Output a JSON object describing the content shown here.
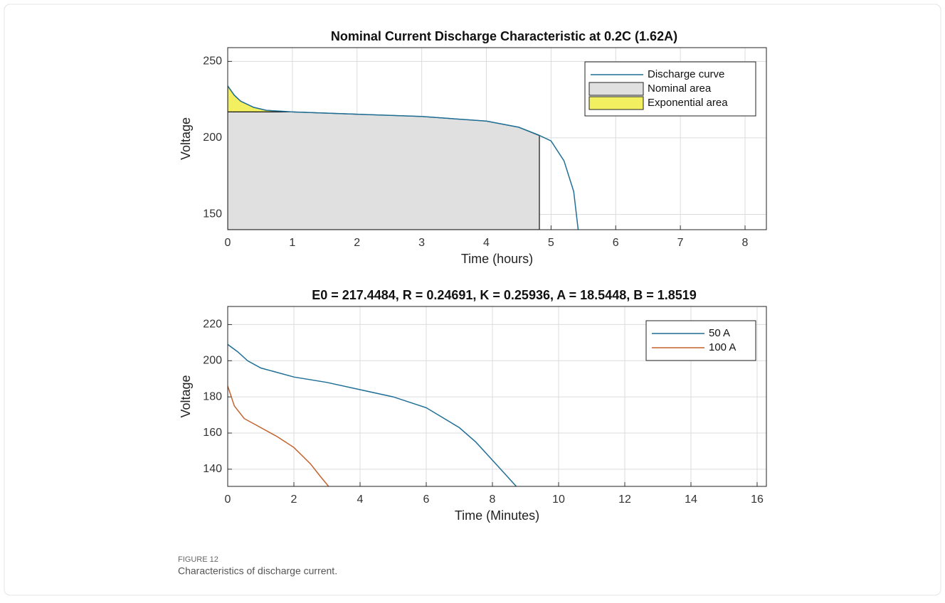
{
  "chart_data": [
    {
      "type": "line",
      "title": "Nominal Current Discharge Characteristic at 0.2C (1.62A)",
      "xlabel": "Time (hours)",
      "ylabel": "Voltage",
      "xlim": [
        0,
        8.33
      ],
      "ylim": [
        140,
        259
      ],
      "xticks": [
        0,
        1,
        2,
        3,
        4,
        5,
        6,
        7,
        8
      ],
      "yticks": [
        150,
        200,
        250
      ],
      "grid": true,
      "legend": "upper right",
      "series": [
        {
          "name": "Discharge curve",
          "kind": "line",
          "color": "#1f6f96",
          "x": [
            0,
            0.1,
            0.2,
            0.4,
            0.6,
            0.8,
            1,
            2,
            3,
            4,
            4.5,
            4.8,
            5,
            5.2,
            5.35,
            5.42
          ],
          "values": [
            234,
            228,
            224,
            220,
            218,
            217.5,
            217,
            215.5,
            214,
            211,
            207,
            202,
            198,
            185,
            165,
            140
          ]
        },
        {
          "name": "Nominal area",
          "kind": "area",
          "color": "#e0e0e0",
          "x": [
            0,
            0.9,
            1,
            2,
            3,
            4,
            4.5,
            4.82
          ],
          "values": [
            217,
            217,
            217,
            215.5,
            214,
            211,
            207,
            201.5
          ]
        },
        {
          "name": "Exponential area",
          "kind": "area",
          "color": "#f2f060",
          "x": [
            0,
            0.1,
            0.2,
            0.4,
            0.6,
            0.8,
            0.9
          ],
          "values": [
            234,
            228,
            224,
            220,
            218,
            217.5,
            217.2
          ]
        }
      ]
    },
    {
      "type": "line",
      "title": "E0 = 217.4484, R = 0.24691, K = 0.25936, A = 18.5448, B = 1.8519",
      "xlabel": "Time (Minutes)",
      "ylabel": "Voltage",
      "xlim": [
        0,
        16.28
      ],
      "ylim": [
        130.5,
        230
      ],
      "xticks": [
        0,
        2,
        4,
        6,
        8,
        10,
        12,
        14,
        16
      ],
      "yticks": [
        140,
        160,
        180,
        200,
        220
      ],
      "grid": true,
      "legend": "upper right",
      "series": [
        {
          "name": "50 A",
          "kind": "line",
          "color": "#1f6f96",
          "x": [
            0,
            0.3,
            0.6,
            1,
            2,
            3,
            4,
            5,
            6,
            7,
            7.5,
            8,
            8.5,
            8.72
          ],
          "values": [
            209,
            205,
            200,
            196,
            191,
            188,
            184,
            180,
            174,
            163,
            155,
            145,
            135,
            130.5
          ]
        },
        {
          "name": "100 A",
          "kind": "line",
          "color": "#c2622c",
          "x": [
            0,
            0.2,
            0.5,
            1,
            1.5,
            2,
            2.5,
            2.8,
            3.05
          ],
          "values": [
            186,
            175,
            168,
            163,
            158,
            152,
            143,
            136,
            130.5
          ]
        }
      ]
    }
  ],
  "caption": {
    "label": "FIGURE 12",
    "text": "Characteristics of discharge current."
  }
}
